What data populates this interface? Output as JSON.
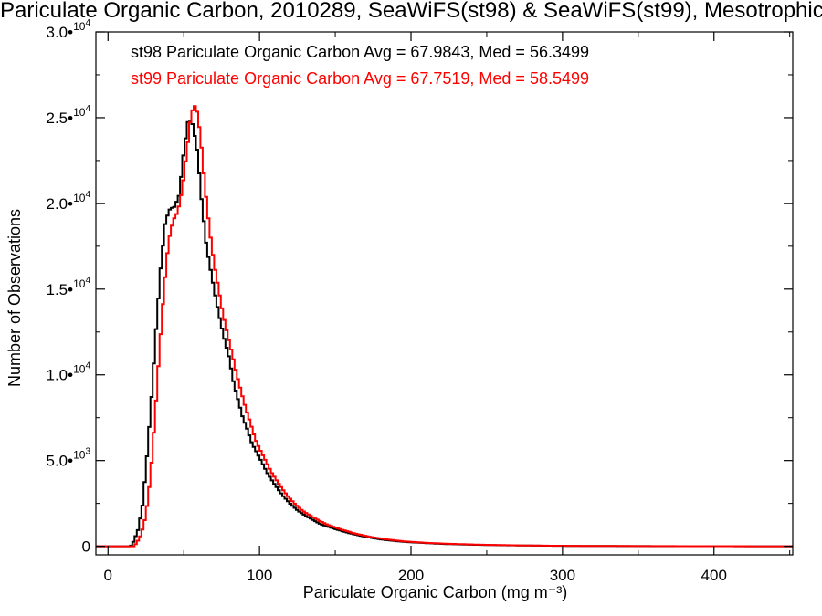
{
  "chart_data": {
    "type": "histogram",
    "title": "Pariculate Organic Carbon, 2010289, SeaWiFS(st98) & SeaWiFS(st99), Mesotrophic",
    "xlabel": "Pariculate Organic Carbon (mg m⁻³)",
    "ylabel": "Number of Observations",
    "xlim": [
      -8,
      452
    ],
    "ylim": [
      -500,
      30000
    ],
    "x_ticks": [
      0,
      100,
      200,
      300,
      400
    ],
    "x_tick_labels": [
      "0",
      "100",
      "200",
      "300",
      "400"
    ],
    "y_ticks": [
      0,
      5000,
      10000,
      15000,
      20000,
      25000,
      30000
    ],
    "y_tick_labels": [
      {
        "mant": "0",
        "exp": ""
      },
      {
        "mant": "5.0•",
        "exp": "3"
      },
      {
        "mant": "1.0•",
        "exp": "4"
      },
      {
        "mant": "1.5•",
        "exp": "4"
      },
      {
        "mant": "2.0•",
        "exp": "4"
      },
      {
        "mant": "2.5•",
        "exp": "4"
      },
      {
        "mant": "3.0•",
        "exp": "4"
      }
    ],
    "colors": {
      "st98": "#000000",
      "st99": "#ff0000"
    },
    "series": [
      {
        "name": "st98",
        "legend": "st98 Pariculate Organic Carbon Avg = 67.9843, Med = 56.3499",
        "color": "#000000",
        "points": [
          [
            -8,
            0
          ],
          [
            15,
            0
          ],
          [
            17,
            300
          ],
          [
            20,
            1000
          ],
          [
            23,
            2500
          ],
          [
            26,
            5500
          ],
          [
            29,
            9000
          ],
          [
            32,
            13000
          ],
          [
            35,
            16500
          ],
          [
            38,
            19000
          ],
          [
            41,
            19700
          ],
          [
            44,
            19800
          ],
          [
            47,
            20500
          ],
          [
            50,
            23000
          ],
          [
            53,
            24900
          ],
          [
            56,
            24600
          ],
          [
            59,
            23000
          ],
          [
            62,
            20000
          ],
          [
            65,
            17500
          ],
          [
            68,
            16000
          ],
          [
            71,
            14500
          ],
          [
            74,
            13200
          ],
          [
            77,
            12000
          ],
          [
            80,
            11000
          ],
          [
            83,
            9500
          ],
          [
            86,
            8500
          ],
          [
            89,
            7500
          ],
          [
            92,
            6800
          ],
          [
            95,
            6000
          ],
          [
            98,
            5500
          ],
          [
            101,
            5000
          ],
          [
            105,
            4300
          ],
          [
            110,
            3600
          ],
          [
            115,
            3000
          ],
          [
            120,
            2500
          ],
          [
            125,
            2100
          ],
          [
            130,
            1800
          ],
          [
            140,
            1300
          ],
          [
            150,
            1000
          ],
          [
            160,
            750
          ],
          [
            170,
            550
          ],
          [
            180,
            400
          ],
          [
            190,
            300
          ],
          [
            200,
            230
          ],
          [
            220,
            140
          ],
          [
            240,
            90
          ],
          [
            260,
            60
          ],
          [
            280,
            40
          ],
          [
            300,
            25
          ],
          [
            330,
            15
          ],
          [
            360,
            8
          ],
          [
            400,
            4
          ],
          [
            452,
            0
          ]
        ]
      },
      {
        "name": "st99",
        "legend": "st99 Pariculate Organic Carbon Avg = 67.7519, Med = 58.5499",
        "color": "#ff0000",
        "points": [
          [
            -8,
            0
          ],
          [
            17,
            0
          ],
          [
            19,
            200
          ],
          [
            22,
            700
          ],
          [
            25,
            1800
          ],
          [
            28,
            4000
          ],
          [
            31,
            7500
          ],
          [
            34,
            11500
          ],
          [
            37,
            15000
          ],
          [
            40,
            17800
          ],
          [
            43,
            19000
          ],
          [
            46,
            19500
          ],
          [
            49,
            20800
          ],
          [
            52,
            23000
          ],
          [
            55,
            25300
          ],
          [
            58,
            25800
          ],
          [
            61,
            24000
          ],
          [
            64,
            21000
          ],
          [
            67,
            18500
          ],
          [
            70,
            16500
          ],
          [
            73,
            15000
          ],
          [
            76,
            13500
          ],
          [
            79,
            12300
          ],
          [
            82,
            11200
          ],
          [
            85,
            10000
          ],
          [
            88,
            9000
          ],
          [
            91,
            8000
          ],
          [
            94,
            7200
          ],
          [
            97,
            6300
          ],
          [
            100,
            5700
          ],
          [
            104,
            5000
          ],
          [
            108,
            4300
          ],
          [
            113,
            3600
          ],
          [
            118,
            3000
          ],
          [
            123,
            2500
          ],
          [
            128,
            2100
          ],
          [
            135,
            1700
          ],
          [
            145,
            1250
          ],
          [
            155,
            950
          ],
          [
            165,
            700
          ],
          [
            175,
            520
          ],
          [
            185,
            390
          ],
          [
            195,
            290
          ],
          [
            210,
            200
          ],
          [
            230,
            130
          ],
          [
            250,
            85
          ],
          [
            270,
            55
          ],
          [
            290,
            35
          ],
          [
            320,
            20
          ],
          [
            350,
            12
          ],
          [
            390,
            6
          ],
          [
            452,
            0
          ]
        ]
      }
    ]
  }
}
